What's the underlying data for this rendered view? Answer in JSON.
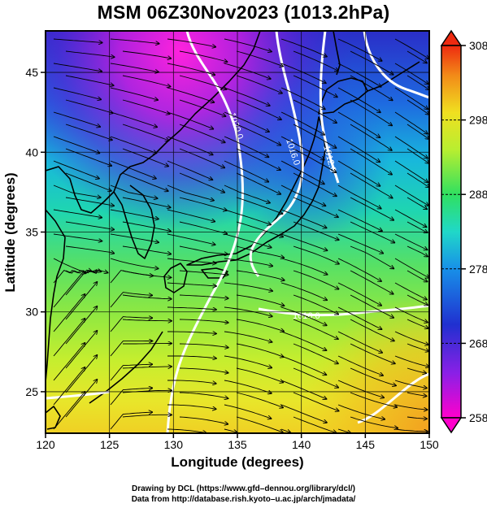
{
  "title": "MSM 06Z30Nov2023 (1013.2hPa)",
  "x_axis": {
    "label": "Longitude (degrees)",
    "range": [
      120,
      150
    ],
    "ticks": [
      "120",
      "125",
      "130",
      "135",
      "140",
      "145",
      "150"
    ]
  },
  "y_axis": {
    "label": "Latitude  (degrees)",
    "range": [
      22.4,
      47.6
    ],
    "ticks": [
      "25",
      "30",
      "35",
      "40",
      "45"
    ]
  },
  "colorbar": {
    "range": [
      258,
      308
    ],
    "labels": [
      "308",
      "298",
      "288",
      "278",
      "268",
      "258"
    ]
  },
  "isobars": {
    "labels": [
      "1020.0",
      "1016.0",
      "1012.0",
      "1016.0"
    ],
    "color": "#ffffff"
  },
  "credits": {
    "line1": "Drawing by DCL (https://www.gfd–dennou.org/library/dcl/)",
    "line2": "Data from http://database.rish.kyoto–u.ac.jp/arch/jmadata/"
  }
}
